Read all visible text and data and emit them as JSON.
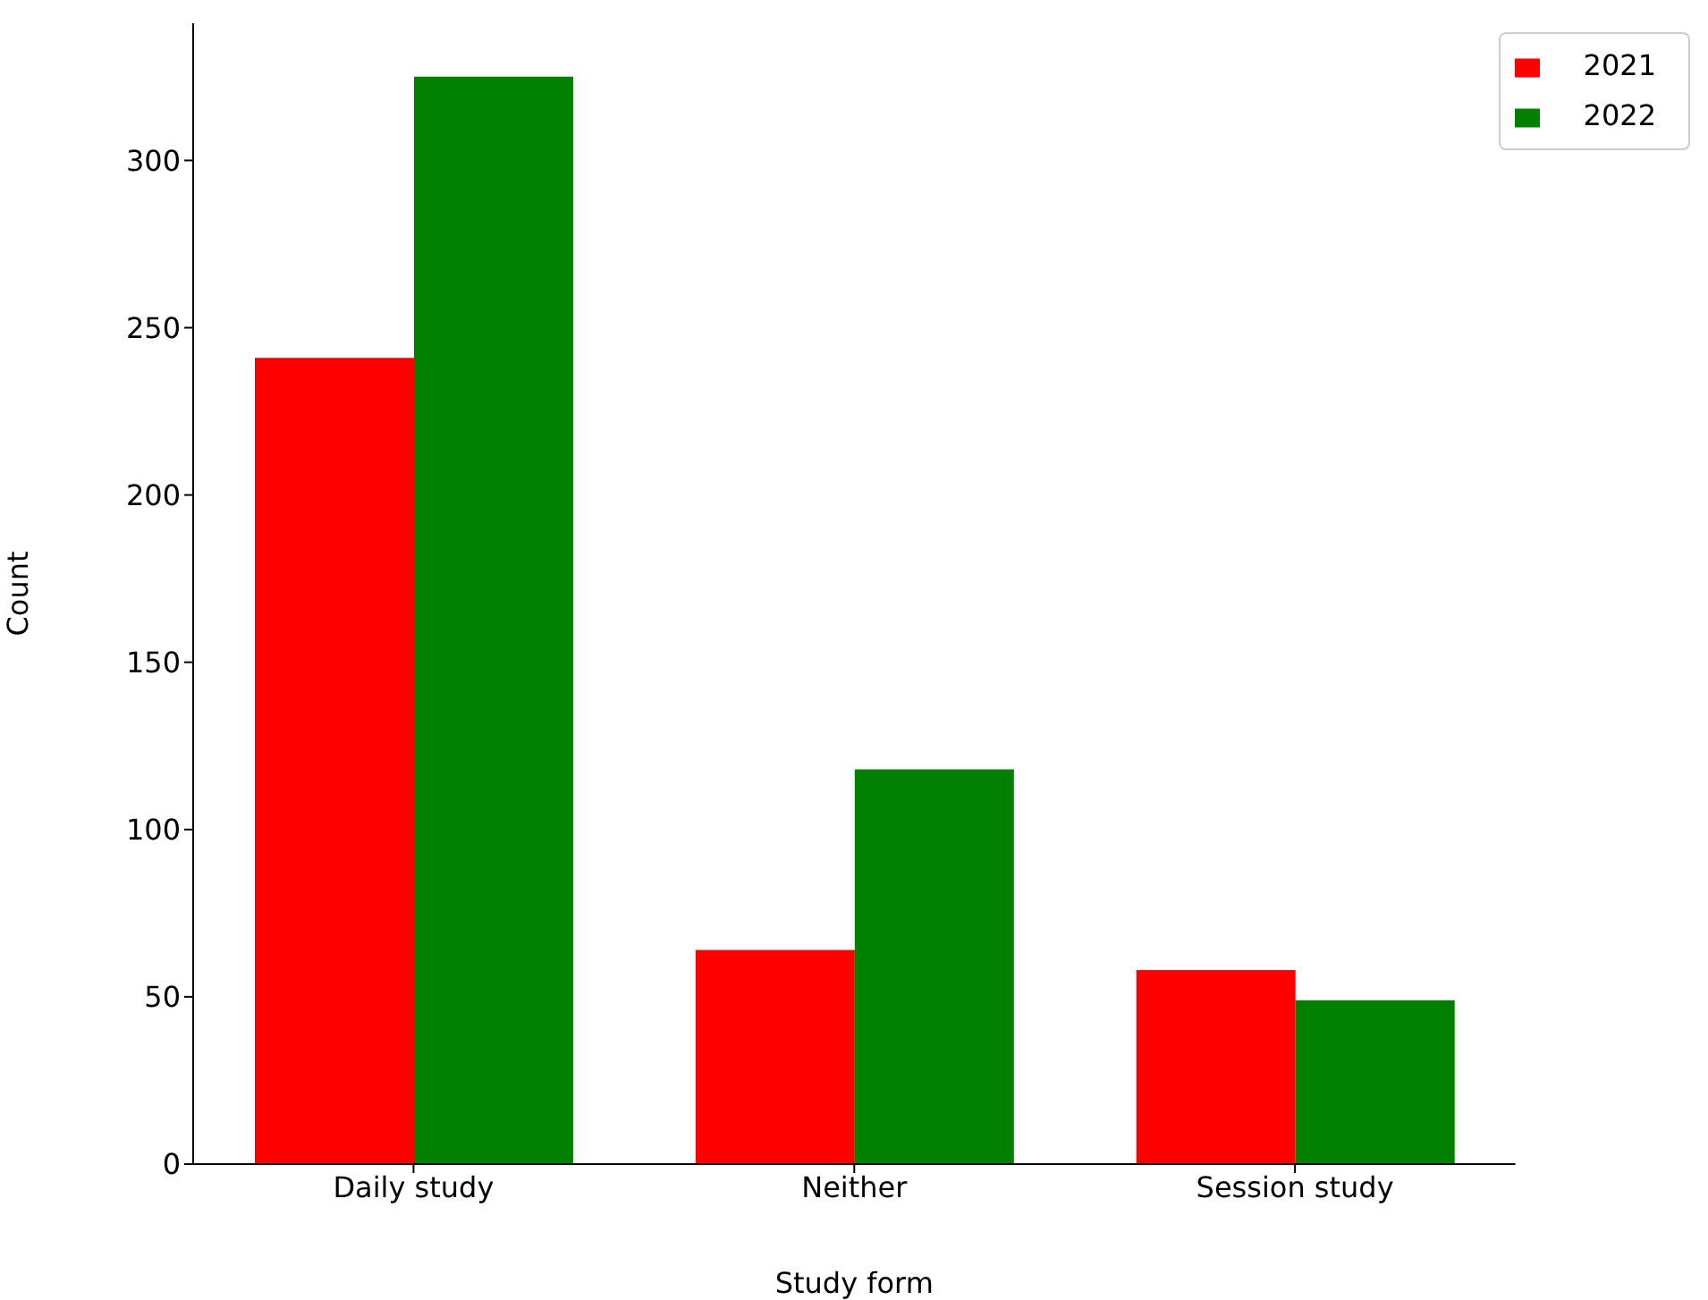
{
  "chart_data": {
    "type": "bar",
    "xlabel": "Study form",
    "ylabel": "Count",
    "categories": [
      "Daily study",
      "Neither",
      "Session study"
    ],
    "series": [
      {
        "name": "2021",
        "color": "#ff0000",
        "values": [
          241,
          64,
          58
        ]
      },
      {
        "name": "2022",
        "color": "#008000",
        "values": [
          325,
          118,
          49
        ]
      }
    ],
    "ylim": [
      0,
      341
    ],
    "yticks": [
      0,
      50,
      100,
      150,
      200,
      250,
      300
    ],
    "grid": false,
    "legend": "top right"
  }
}
